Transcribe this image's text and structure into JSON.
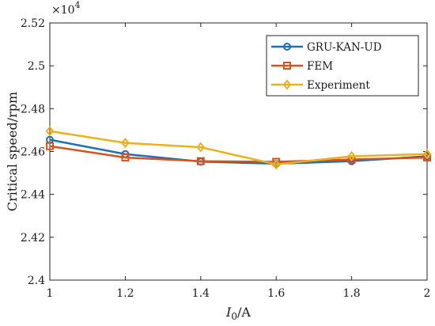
{
  "chart_data": {
    "type": "line",
    "xlabel_main": "I",
    "xlabel_sub": "0",
    "xlabel_unit": "/A",
    "ylabel": "Critical speed/rpm",
    "multiplier_base": "×10",
    "multiplier_exp": "4",
    "x": [
      1,
      1.2,
      1.4,
      1.6,
      1.8,
      2
    ],
    "x_tick_labels": [
      "1",
      "1.2",
      "1.4",
      "1.6",
      "1.8",
      "2"
    ],
    "y_tick_values": [
      2.4,
      2.42,
      2.44,
      2.46,
      2.48,
      2.5,
      2.52
    ],
    "y_tick_labels": [
      "2.4",
      "2.42",
      "2.44",
      "2.46",
      "2.48",
      "2.5",
      "2.52"
    ],
    "xlim": [
      1,
      2
    ],
    "ylim": [
      2.4,
      2.52
    ],
    "grid": false,
    "legend_position": "top-right",
    "series": [
      {
        "name": "GRU-KAN-UD",
        "color": "#1f6fb4",
        "marker": "circle",
        "values": [
          2.4655,
          2.4588,
          2.4553,
          2.4543,
          2.4555,
          2.4578
        ]
      },
      {
        "name": "FEM",
        "color": "#d6531f",
        "marker": "square",
        "values": [
          2.4625,
          2.4572,
          2.4555,
          2.4552,
          2.4563,
          2.4572
        ]
      },
      {
        "name": "Experiment",
        "color": "#eab11f",
        "marker": "diamond",
        "values": [
          2.4695,
          2.464,
          2.462,
          2.454,
          2.4578,
          2.4588
        ]
      }
    ]
  }
}
